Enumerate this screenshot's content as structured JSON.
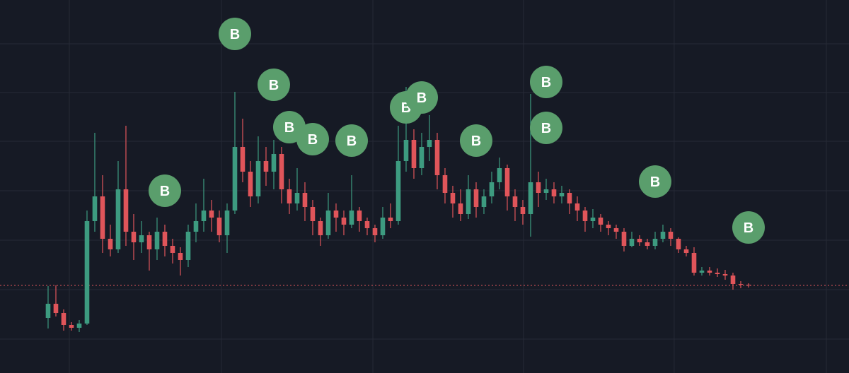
{
  "chart_data": {
    "type": "candlestick",
    "x": [
      0,
      1,
      2,
      3,
      4,
      5,
      6,
      7,
      8,
      9,
      10,
      11,
      12,
      13,
      14,
      15,
      16,
      17,
      18,
      19,
      20,
      21,
      22,
      23,
      24,
      25,
      26,
      27,
      28,
      29,
      30,
      31,
      32,
      33,
      34,
      35,
      36,
      37,
      38,
      39,
      40,
      41,
      42,
      43,
      44,
      45,
      46,
      47,
      48,
      49,
      50,
      51,
      52,
      53,
      54,
      55,
      56,
      57,
      58,
      59,
      60,
      61,
      62,
      63,
      64,
      65,
      66,
      67,
      68,
      69,
      70,
      71,
      72,
      73,
      74,
      75,
      76,
      77,
      78,
      79,
      80,
      81,
      82,
      83,
      84,
      85,
      86,
      87,
      88,
      89,
      90
    ],
    "open": [
      78,
      98,
      85,
      68,
      64,
      70,
      215,
      250,
      190,
      175,
      260,
      200,
      185,
      195,
      175,
      200,
      180,
      170,
      160,
      200,
      215,
      230,
      220,
      195,
      230,
      320,
      285,
      250,
      300,
      285,
      310,
      260,
      240,
      255,
      235,
      215,
      195,
      230,
      220,
      210,
      230,
      215,
      205,
      195,
      220,
      215,
      300,
      330,
      290,
      320,
      330,
      280,
      255,
      240,
      225,
      260,
      235,
      250,
      270,
      290,
      250,
      235,
      225,
      270,
      255,
      260,
      250,
      255,
      240,
      230,
      215,
      220,
      210,
      205,
      200,
      180,
      190,
      185,
      180,
      190,
      200,
      190,
      175,
      170,
      142,
      145,
      142,
      140,
      138,
      126,
      125
    ],
    "high": [
      123,
      124,
      90,
      72,
      75,
      230,
      340,
      280,
      210,
      300,
      350,
      225,
      215,
      200,
      220,
      210,
      190,
      178,
      210,
      240,
      275,
      245,
      230,
      240,
      398,
      360,
      300,
      335,
      320,
      330,
      320,
      275,
      290,
      270,
      245,
      220,
      255,
      240,
      230,
      280,
      235,
      220,
      210,
      235,
      240,
      350,
      405,
      345,
      340,
      365,
      340,
      290,
      265,
      260,
      280,
      270,
      260,
      285,
      305,
      295,
      260,
      245,
      395,
      285,
      275,
      270,
      265,
      260,
      250,
      235,
      232,
      225,
      215,
      210,
      205,
      200,
      195,
      190,
      200,
      210,
      205,
      192,
      180,
      178,
      150,
      150,
      148,
      146,
      142,
      130,
      127
    ],
    "low": [
      63,
      80,
      60,
      60,
      58,
      68,
      200,
      170,
      165,
      170,
      180,
      160,
      170,
      145,
      160,
      165,
      155,
      138,
      150,
      185,
      200,
      200,
      185,
      170,
      225,
      270,
      235,
      240,
      265,
      260,
      240,
      225,
      230,
      215,
      195,
      180,
      190,
      200,
      195,
      205,
      200,
      195,
      185,
      190,
      205,
      210,
      285,
      275,
      280,
      300,
      260,
      240,
      220,
      215,
      218,
      220,
      225,
      240,
      260,
      230,
      215,
      210,
      193,
      235,
      245,
      240,
      240,
      225,
      215,
      200,
      205,
      200,
      195,
      190,
      172,
      178,
      180,
      175,
      175,
      185,
      180,
      170,
      165,
      138,
      138,
      138,
      136,
      132,
      118,
      120,
      121
    ],
    "close": [
      98,
      85,
      68,
      64,
      70,
      215,
      250,
      190,
      175,
      260,
      200,
      185,
      195,
      175,
      200,
      180,
      170,
      160,
      200,
      215,
      230,
      220,
      195,
      230,
      320,
      285,
      250,
      300,
      285,
      310,
      260,
      240,
      255,
      235,
      215,
      195,
      230,
      220,
      210,
      230,
      215,
      205,
      195,
      220,
      215,
      300,
      330,
      290,
      320,
      330,
      280,
      255,
      240,
      225,
      260,
      235,
      250,
      270,
      290,
      250,
      235,
      225,
      270,
      255,
      260,
      250,
      255,
      240,
      230,
      215,
      220,
      210,
      205,
      200,
      180,
      190,
      185,
      180,
      190,
      200,
      190,
      175,
      170,
      142,
      145,
      142,
      140,
      138,
      126,
      125,
      124
    ],
    "up_color": "#3d9b80",
    "down_color": "#e0555a",
    "markers": [
      {
        "index": 24,
        "value": 480,
        "label": "B"
      },
      {
        "index": 29,
        "value": 408,
        "label": "B"
      },
      {
        "index": 31,
        "value": 348,
        "label": "B"
      },
      {
        "index": 34,
        "value": 331,
        "label": "B"
      },
      {
        "index": 39,
        "value": 329,
        "label": "B"
      },
      {
        "index": 15,
        "value": 258,
        "label": "B"
      },
      {
        "index": 46,
        "value": 376,
        "label": "B"
      },
      {
        "index": 48,
        "value": 390,
        "label": "B"
      },
      {
        "index": 55,
        "value": 329,
        "label": "B"
      },
      {
        "index": 64,
        "value": 412,
        "label": "B"
      },
      {
        "index": 64,
        "value": 347,
        "label": "B"
      },
      {
        "index": 78,
        "value": 271,
        "label": "B"
      },
      {
        "index": 90,
        "value": 206,
        "label": "B"
      }
    ],
    "marker_color": "#5a9e6c",
    "last_price": 124,
    "last_price_color": "#e0555a",
    "xlim": [
      -6.18,
      102.91
    ],
    "ylim": [
      0,
      528
    ],
    "xticks": [
      2.73,
      22.27,
      41.73,
      61.09,
      80.45,
      100
    ],
    "yticks": [
      466,
      397,
      328,
      258,
      188,
      118,
      48
    ],
    "grid": true
  }
}
